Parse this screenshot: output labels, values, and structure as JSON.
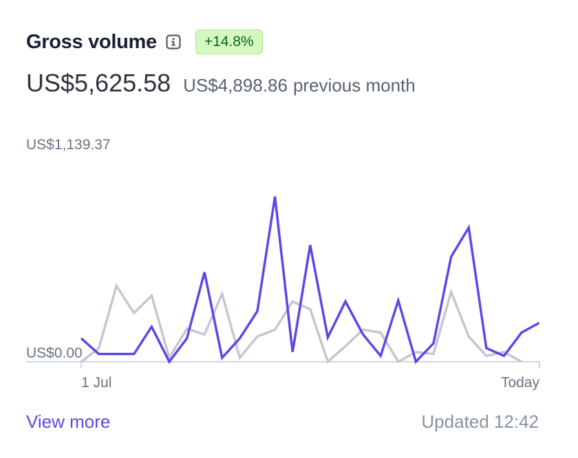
{
  "card": {
    "title": "Gross volume",
    "change_badge": "+14.8%",
    "amount": "US$5,625.58",
    "previous_amount": "US$4,898.86",
    "previous_label": "previous month",
    "view_more": "View more",
    "updated": "Updated 12:42"
  },
  "colors": {
    "current": "#5d47e8",
    "previous": "#c3c8d0",
    "badge_bg": "#d7f7c2",
    "badge_text": "#05690d"
  },
  "chart_data": {
    "type": "line",
    "ylim": [
      0,
      1139.37
    ],
    "y_tick_labels": [
      "US$0.00",
      "US$1,139.37"
    ],
    "x_tick_labels": [
      "1 Jul",
      "Today"
    ],
    "grid": false,
    "series": [
      {
        "values": [
          120,
          40,
          40,
          40,
          180,
          0,
          120,
          460,
          20,
          120,
          260,
          850,
          50,
          600,
          125,
          310,
          140,
          30,
          315,
          0,
          95,
          540,
          690,
          70,
          30,
          150,
          200
        ]
      },
      {
        "values": [
          0,
          70,
          390,
          250,
          340,
          20,
          170,
          140,
          350,
          20,
          130,
          165,
          310,
          270,
          0,
          80,
          165,
          150,
          0,
          50,
          40,
          360,
          130,
          30,
          50,
          0
        ]
      }
    ]
  }
}
